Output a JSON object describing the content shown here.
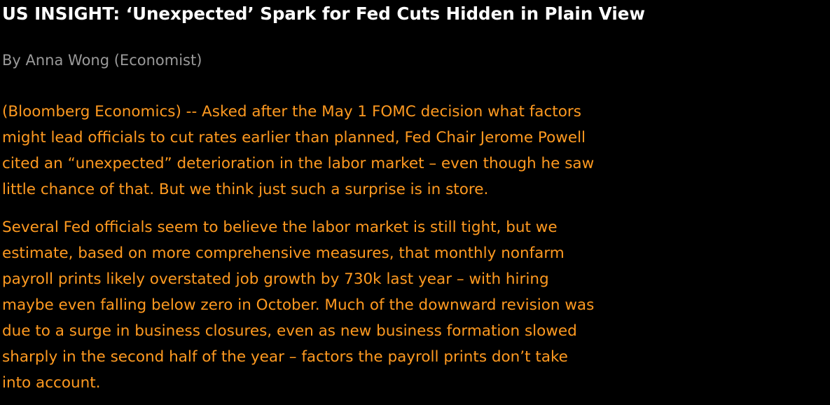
{
  "article": {
    "headline": "US INSIGHT: ‘Unexpected’ Spark for Fed Cuts Hidden in Plain View",
    "byline": "By Anna Wong (Economist)",
    "paragraphs": [
      {
        "lines": [
          "(Bloomberg Economics) -- Asked after the May 1 FOMC decision what factors",
          "might lead officials to cut rates earlier than planned, Fed Chair Jerome Powell",
          "cited an “unexpected” deterioration in the labor market – even though he saw",
          "little chance of that. But we think just such a surprise is in store."
        ]
      },
      {
        "lines": [
          "Several Fed officials seem to believe the labor market is still tight, but we",
          "estimate, based on more comprehensive measures, that monthly nonfarm",
          "payroll prints likely overstated job growth by 730k last year – with hiring",
          "maybe even falling below zero in October. Much of the downward revision was",
          "due to a surge in business closures, even as new business formation slowed",
          "sharply in the second half of the year – factors the payroll prints don’t take",
          "into account."
        ]
      }
    ]
  },
  "colors": {
    "background": "#000000",
    "headline": "#ffffff",
    "byline": "#9a9a9a",
    "body": "#ff9a20"
  }
}
